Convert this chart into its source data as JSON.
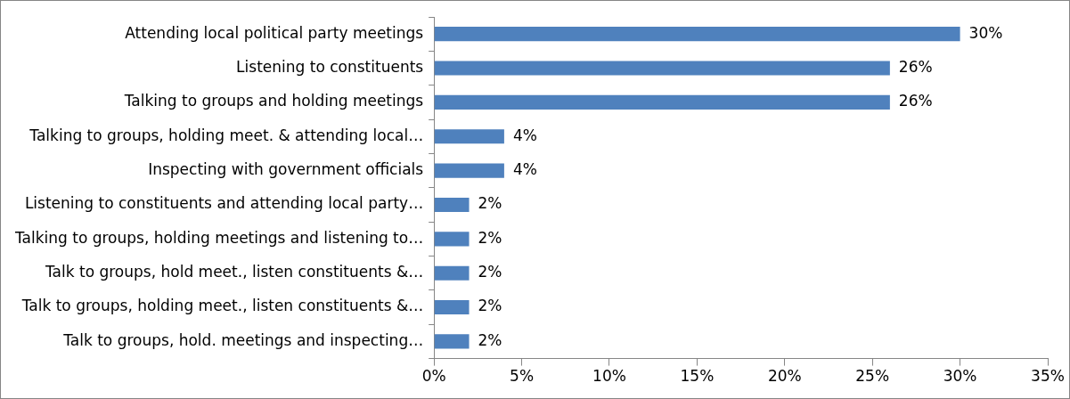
{
  "chart_data": {
    "type": "bar",
    "orientation": "horizontal",
    "categories": [
      "Attending local political party meetings",
      "Listening to constituents",
      "Talking to groups and holding meetings",
      "Talking to groups, holding meet. & attending local…",
      "Inspecting with government officials",
      "Listening to constituents and attending local party…",
      "Talking to groups, holding meetings and listening to…",
      "Talk to groups, hold meet., listen constituents &…",
      "Talk to groups, holding meet., listen constituents &…",
      "Talk to groups, hold. meetings and inspecting…"
    ],
    "values": [
      30,
      26,
      26,
      4,
      4,
      2,
      2,
      2,
      2,
      2
    ],
    "value_labels": [
      "30%",
      "26%",
      "26%",
      "4%",
      "4%",
      "2%",
      "2%",
      "2%",
      "2%",
      "2%"
    ],
    "color": "#4f81bd",
    "xlim": [
      0,
      35
    ],
    "xticks": [
      {
        "value": 0,
        "label": "0%"
      },
      {
        "value": 5,
        "label": "5%"
      },
      {
        "value": 10,
        "label": "10%"
      },
      {
        "value": 15,
        "label": "15%"
      },
      {
        "value": 20,
        "label": "20%"
      },
      {
        "value": 25,
        "label": "25%"
      },
      {
        "value": 30,
        "label": "30%"
      },
      {
        "value": 35,
        "label": "35%"
      }
    ],
    "grid": false,
    "legend": false
  }
}
